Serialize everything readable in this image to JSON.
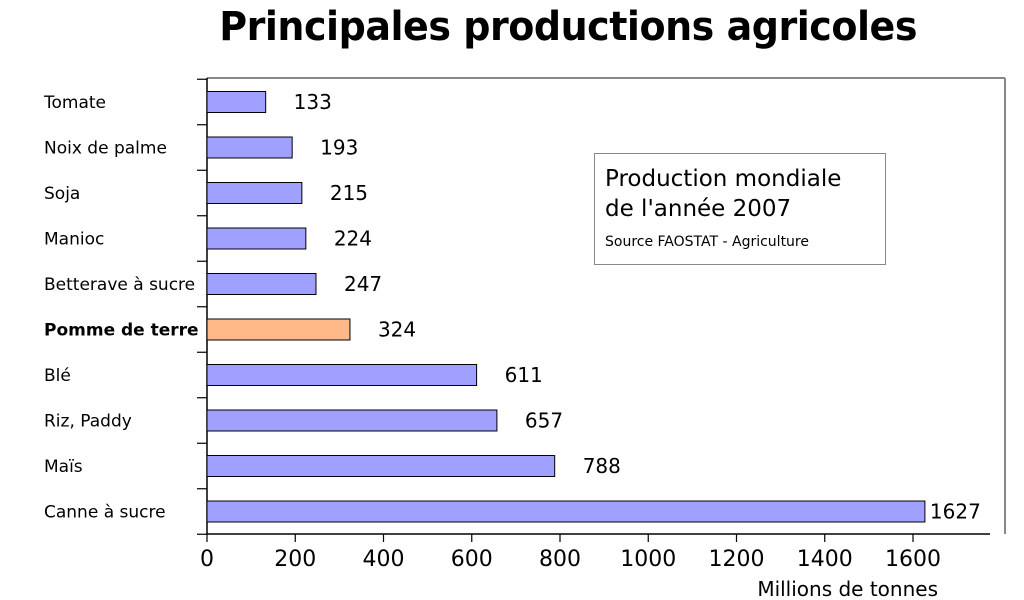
{
  "chart_data": {
    "type": "bar",
    "orientation": "horizontal",
    "title": "Principales productions agricoles",
    "xlabel": "Millions de tonnes",
    "categories": [
      "Tomate",
      "Noix de palme",
      "Soja",
      "Manioc",
      "Betterave à sucre",
      "Pomme de terre",
      "Blé",
      "Riz, Paddy",
      "Maïs",
      "Canne à sucre"
    ],
    "values": [
      133,
      193,
      215,
      224,
      247,
      324,
      611,
      657,
      788,
      1627
    ],
    "value_labels": [
      "133",
      "193",
      "215",
      "224",
      "247",
      "324",
      "611",
      "657",
      "788",
      "1627"
    ],
    "highlight_index": 5,
    "xlim": [
      0,
      1760
    ],
    "x_ticks": [
      0,
      200,
      400,
      600,
      800,
      1000,
      1200,
      1400,
      1600
    ],
    "grid": false,
    "legend": "none",
    "annotation": {
      "line1": "Production mondiale",
      "line2": "de l'année 2007",
      "source": "Source FAOSTAT - Agriculture"
    },
    "colors": {
      "bar": "#a0a0ff",
      "highlight_bar": "#ffb888",
      "bar_edge": "#000000",
      "frame": "#888888"
    }
  }
}
